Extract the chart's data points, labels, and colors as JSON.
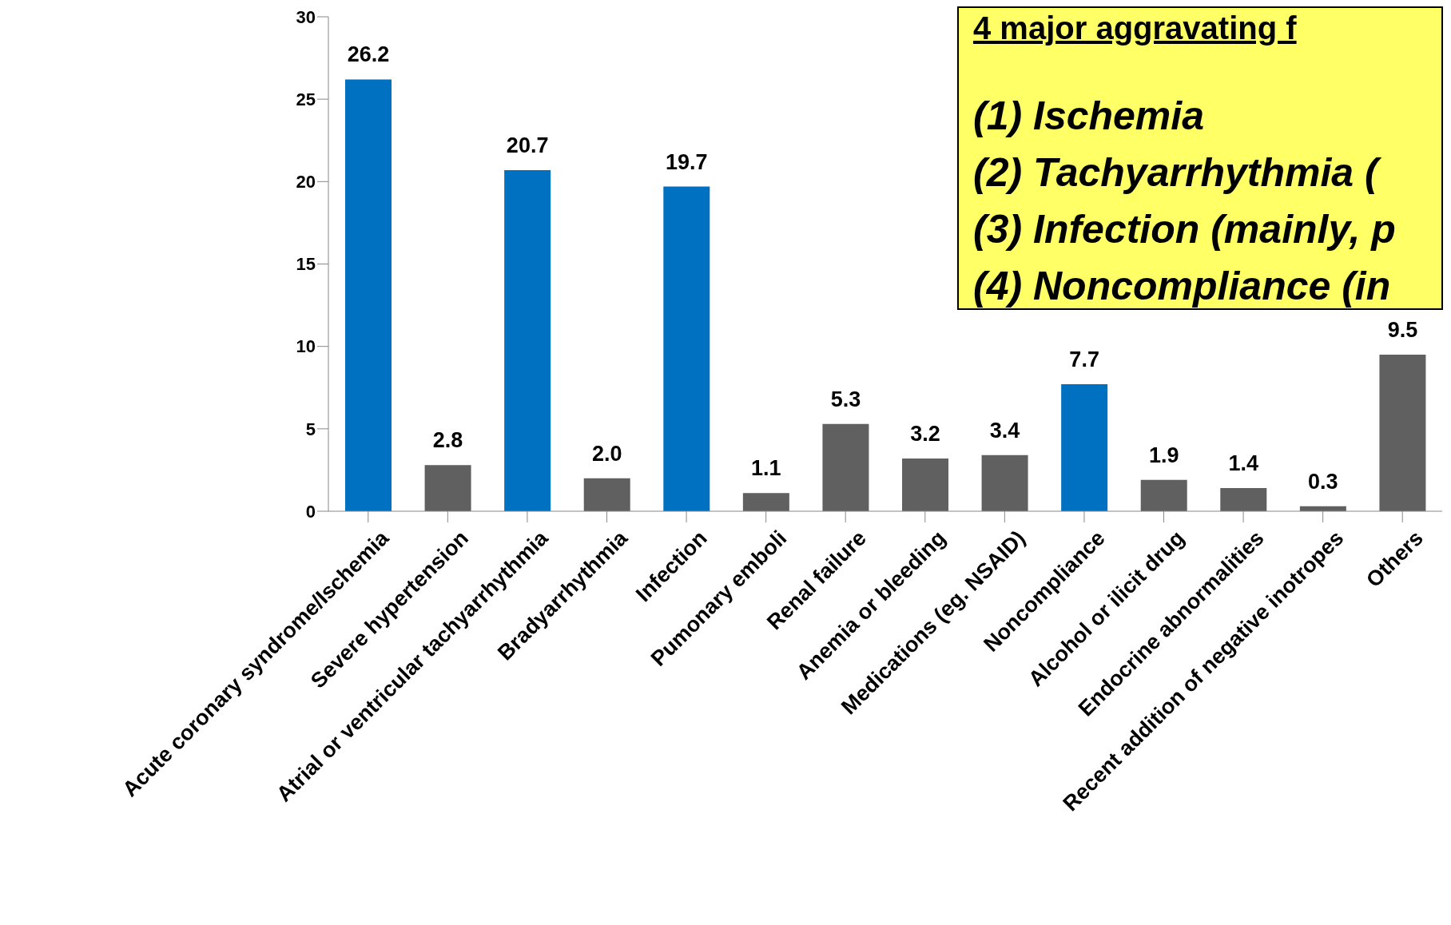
{
  "chart_data": {
    "type": "bar",
    "categories": [
      "Acute coronary syndrome/Ischemia",
      "Severe hypertension",
      "Atrial or ventricular tachyarrhythmia",
      "Bradyarrhythmia",
      "Infection",
      "Pumonary emboli",
      "Renal failure",
      "Anemia or bleeding",
      "Medications (eg. NSAID)",
      "Noncompliance",
      "Alcohol or ilicit drug",
      "Endocrine abnormalities",
      "Recent addition of negative inotropes",
      "Others"
    ],
    "values": [
      26.2,
      2.8,
      20.7,
      2.0,
      19.7,
      1.1,
      5.3,
      3.2,
      3.4,
      7.7,
      1.9,
      1.4,
      0.3,
      9.5
    ],
    "value_labels": [
      "26.2",
      "2.8",
      "20.7",
      "2.0",
      "19.7",
      "1.1",
      "5.3",
      "3.2",
      "3.4",
      "7.7",
      "1.9",
      "1.4",
      "0.3",
      "9.5"
    ],
    "colors": [
      "#0070c0",
      "#606060",
      "#0070c0",
      "#606060",
      "#0070c0",
      "#606060",
      "#606060",
      "#606060",
      "#606060",
      "#0070c0",
      "#606060",
      "#606060",
      "#606060",
      "#606060"
    ],
    "ylim": [
      0,
      30
    ],
    "yticks": [
      0,
      5,
      10,
      15,
      20,
      25,
      30
    ],
    "grid": false,
    "legend": false,
    "annotations": [
      "4 major aggravating f",
      "(1) Ischemia",
      "(2) Tachyarrhythmia (",
      "(3) Infection (mainly, p",
      "(4) Noncompliance (in"
    ]
  }
}
